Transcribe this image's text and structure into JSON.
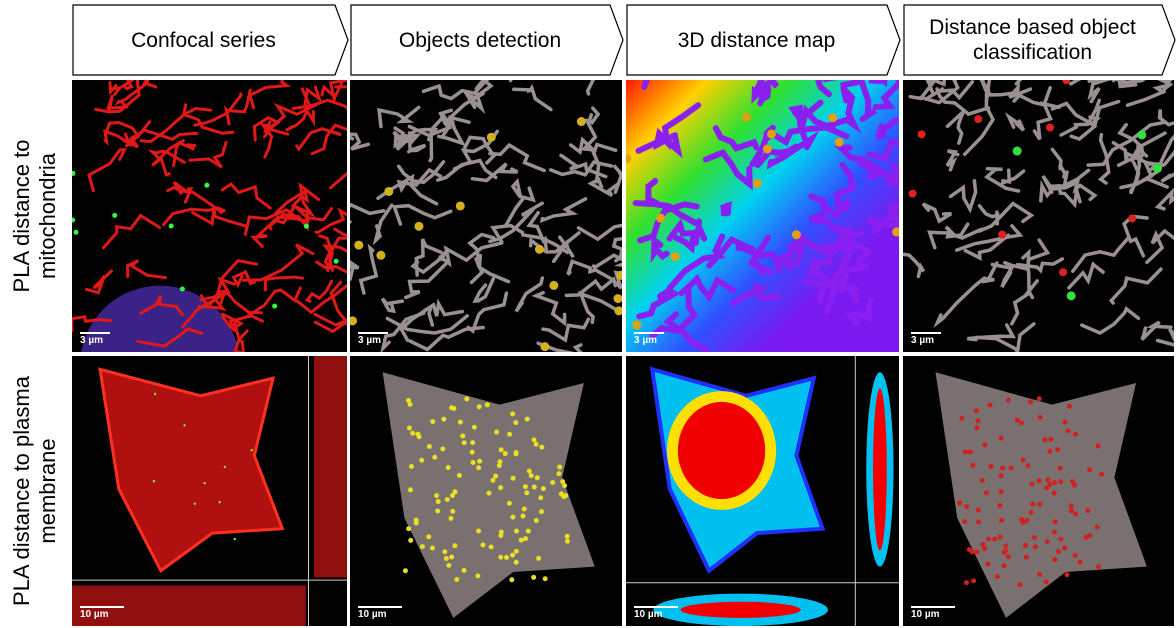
{
  "columns": [
    {
      "label": "Confocal series"
    },
    {
      "label": "Objects detection"
    },
    {
      "label": "3D distance map"
    },
    {
      "label": "Distance based object classification"
    }
  ],
  "rows": [
    {
      "label": "PLA distance to mitochondria",
      "scale_bars": [
        "3 µm",
        "3 µm",
        "3 µm",
        "3 µm"
      ]
    },
    {
      "label": "PLA distance to plasma membrane",
      "scale_bars": [
        "10 µm",
        "10 µm",
        "10 µm",
        "10 µm"
      ]
    }
  ]
}
